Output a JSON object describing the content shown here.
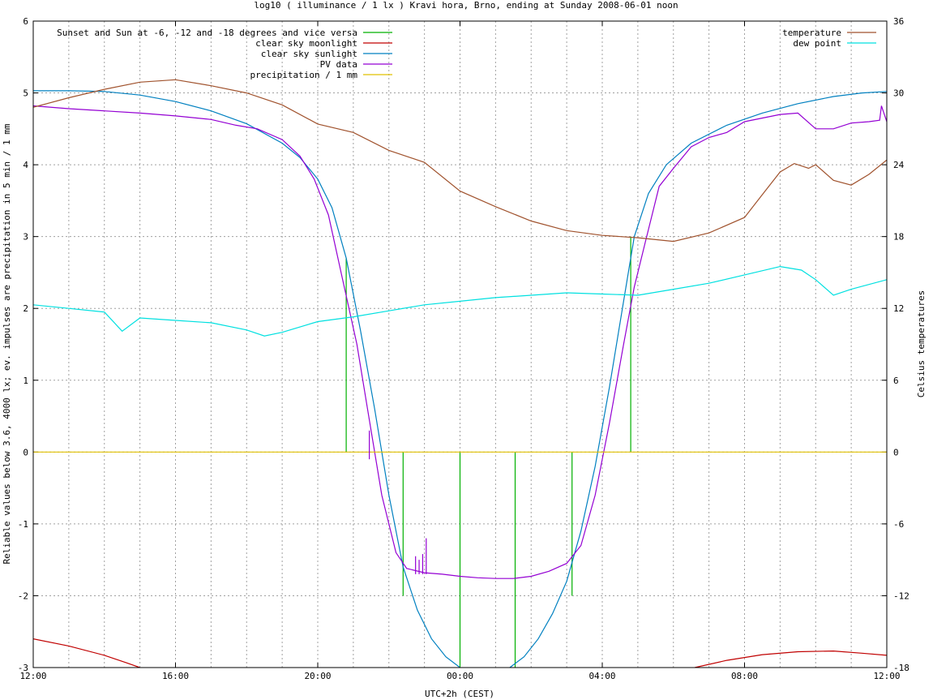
{
  "chart_data": {
    "type": "line",
    "title": "log10 ( illuminance / 1 lx ) Kravi hora, Brno, ending at Sunday 2008-06-01 noon",
    "xlabel": "UTC+2h (CEST)",
    "ylabel": "Reliable values below 3.6, 4000 lx; ev. impulses are precipitation in 5 min / 1 mm",
    "y2label": "Celsius temperatures",
    "xlim": [
      0,
      24
    ],
    "ylim": [
      -3,
      6
    ],
    "y2lim": [
      -18,
      36
    ],
    "grid": true,
    "legend_left_placement": "top-left",
    "legend_right_placement": "top-right",
    "x_ticks": [
      {
        "x": 0,
        "label": "12:00"
      },
      {
        "x": 4,
        "label": "16:00"
      },
      {
        "x": 8,
        "label": "20:00"
      },
      {
        "x": 12,
        "label": "00:00"
      },
      {
        "x": 16,
        "label": "04:00"
      },
      {
        "x": 20,
        "label": "08:00"
      },
      {
        "x": 24,
        "label": "12:00"
      }
    ],
    "y_ticks": [
      "-3",
      "-2",
      "-1",
      "0",
      "1",
      "2",
      "3",
      "4",
      "5",
      "6"
    ],
    "y2_ticks": [
      "-18",
      "-12",
      "-6",
      "0",
      "6",
      "12",
      "18",
      "24",
      "30",
      "36"
    ],
    "series": [
      {
        "name": "Sunset and Sun at -6, -12 and -18 degrees and vice versa",
        "color": "#00b000",
        "style": "impulses",
        "points": [
          [
            8.8,
            2.7
          ],
          [
            10.4,
            -2.0
          ],
          [
            12.0,
            -3.0
          ],
          [
            13.55,
            -3.0
          ],
          [
            15.15,
            -2.0
          ],
          [
            16.8,
            3.0
          ]
        ]
      },
      {
        "name": "clear sky moonlight",
        "color": "#c00000",
        "axis": "y",
        "points": [
          [
            0,
            -2.6
          ],
          [
            1,
            -2.7
          ],
          [
            2,
            -2.83
          ],
          [
            2.6,
            -2.93
          ],
          [
            3.0,
            -3.0
          ]
        ],
        "points2": [
          [
            18.6,
            -3.0
          ],
          [
            19.5,
            -2.9
          ],
          [
            20.5,
            -2.82
          ],
          [
            21.5,
            -2.78
          ],
          [
            22.5,
            -2.77
          ],
          [
            23.3,
            -2.8
          ],
          [
            24,
            -2.83
          ]
        ]
      },
      {
        "name": "clear sky sunlight",
        "color": "#0080c0",
        "axis": "y",
        "points": [
          [
            0,
            5.03
          ],
          [
            1,
            5.03
          ],
          [
            2,
            5.02
          ],
          [
            3,
            4.97
          ],
          [
            4,
            4.88
          ],
          [
            5,
            4.75
          ],
          [
            6,
            4.57
          ],
          [
            7,
            4.3
          ],
          [
            7.5,
            4.1
          ],
          [
            8.0,
            3.8
          ],
          [
            8.4,
            3.4
          ],
          [
            8.8,
            2.7
          ],
          [
            9.2,
            1.7
          ],
          [
            9.6,
            0.6
          ],
          [
            10.0,
            -0.6
          ],
          [
            10.4,
            -1.6
          ],
          [
            10.8,
            -2.2
          ],
          [
            11.2,
            -2.6
          ],
          [
            11.6,
            -2.85
          ],
          [
            12.0,
            -3.0
          ]
        ],
        "points2": [
          [
            13.4,
            -3.0
          ],
          [
            13.8,
            -2.85
          ],
          [
            14.2,
            -2.6
          ],
          [
            14.6,
            -2.25
          ],
          [
            15.0,
            -1.8
          ],
          [
            15.4,
            -1.1
          ],
          [
            15.8,
            -0.2
          ],
          [
            16.2,
            0.9
          ],
          [
            16.6,
            2.1
          ],
          [
            16.9,
            3.0
          ],
          [
            17.3,
            3.6
          ],
          [
            17.8,
            4.0
          ],
          [
            18.5,
            4.3
          ],
          [
            19.5,
            4.55
          ],
          [
            20.5,
            4.72
          ],
          [
            21.5,
            4.85
          ],
          [
            22.5,
            4.95
          ],
          [
            23.3,
            5.0
          ],
          [
            24,
            5.02
          ]
        ]
      },
      {
        "name": "PV data",
        "color": "#9400d3",
        "axis": "y",
        "points": [
          [
            0,
            4.82
          ],
          [
            1,
            4.78
          ],
          [
            2,
            4.75
          ],
          [
            3,
            4.72
          ],
          [
            4,
            4.68
          ],
          [
            5,
            4.63
          ],
          [
            5.7,
            4.55
          ],
          [
            6.3,
            4.5
          ],
          [
            7,
            4.35
          ],
          [
            7.5,
            4.12
          ],
          [
            7.9,
            3.8
          ],
          [
            8.3,
            3.3
          ],
          [
            8.7,
            2.4
          ],
          [
            9.1,
            1.5
          ],
          [
            9.4,
            0.6
          ],
          [
            9.8,
            -0.6
          ],
          [
            10.2,
            -1.4
          ],
          [
            10.5,
            -1.62
          ],
          [
            11,
            -1.68
          ],
          [
            11.5,
            -1.7
          ],
          [
            12,
            -1.73
          ],
          [
            12.5,
            -1.75
          ],
          [
            13,
            -1.76
          ],
          [
            13.5,
            -1.76
          ],
          [
            14,
            -1.73
          ],
          [
            14.5,
            -1.66
          ],
          [
            15.0,
            -1.55
          ],
          [
            15.4,
            -1.3
          ],
          [
            15.8,
            -0.6
          ],
          [
            16.2,
            0.4
          ],
          [
            16.6,
            1.5
          ],
          [
            16.9,
            2.3
          ],
          [
            17.2,
            2.9
          ],
          [
            17.6,
            3.7
          ],
          [
            18.0,
            3.95
          ],
          [
            18.5,
            4.25
          ],
          [
            19,
            4.38
          ],
          [
            19.5,
            4.45
          ],
          [
            20,
            4.6
          ],
          [
            21,
            4.7
          ],
          [
            21.5,
            4.72
          ],
          [
            22,
            4.5
          ],
          [
            22.5,
            4.5
          ],
          [
            23,
            4.58
          ],
          [
            23.5,
            4.6
          ],
          [
            23.8,
            4.62
          ],
          [
            23.85,
            4.82
          ],
          [
            24,
            4.6
          ]
        ]
      },
      {
        "name": "precipitation / 1 mm",
        "color": "#e0c000",
        "axis": "y",
        "points": [
          [
            0,
            0
          ],
          [
            24,
            0
          ]
        ]
      },
      {
        "name": "temperature",
        "color": "#a0522d",
        "axis": "y2",
        "points": [
          [
            0,
            28.8
          ],
          [
            1,
            29.6
          ],
          [
            2,
            30.3
          ],
          [
            3,
            30.9
          ],
          [
            4,
            31.1
          ],
          [
            5,
            30.6
          ],
          [
            6,
            30.0
          ],
          [
            7,
            29.0
          ],
          [
            8,
            27.4
          ],
          [
            9,
            26.7
          ],
          [
            10,
            25.2
          ],
          [
            11,
            24.2
          ],
          [
            12,
            21.8
          ],
          [
            13,
            20.5
          ],
          [
            14,
            19.3
          ],
          [
            15,
            18.5
          ],
          [
            16,
            18.1
          ],
          [
            17,
            17.9
          ],
          [
            18,
            17.6
          ],
          [
            19,
            18.3
          ],
          [
            20,
            19.6
          ],
          [
            20.5,
            21.5
          ],
          [
            21,
            23.4
          ],
          [
            21.4,
            24.1
          ],
          [
            21.8,
            23.7
          ],
          [
            22,
            24.0
          ],
          [
            22.5,
            22.7
          ],
          [
            23,
            22.3
          ],
          [
            23.5,
            23.2
          ],
          [
            24,
            24.4
          ]
        ]
      },
      {
        "name": "dew point",
        "color": "#00e0e0",
        "axis": "y2",
        "points": [
          [
            0,
            12.3
          ],
          [
            1,
            12.0
          ],
          [
            2,
            11.7
          ],
          [
            2.5,
            10.1
          ],
          [
            3,
            11.2
          ],
          [
            4,
            11.0
          ],
          [
            5,
            10.8
          ],
          [
            6,
            10.2
          ],
          [
            6.5,
            9.7
          ],
          [
            7,
            10.0
          ],
          [
            8,
            10.9
          ],
          [
            9,
            11.3
          ],
          [
            10,
            11.8
          ],
          [
            11,
            12.3
          ],
          [
            12,
            12.6
          ],
          [
            13,
            12.9
          ],
          [
            14,
            13.1
          ],
          [
            15,
            13.3
          ],
          [
            16,
            13.2
          ],
          [
            17,
            13.1
          ],
          [
            18,
            13.6
          ],
          [
            19,
            14.1
          ],
          [
            20,
            14.8
          ],
          [
            21,
            15.5
          ],
          [
            21.6,
            15.2
          ],
          [
            22,
            14.4
          ],
          [
            22.5,
            13.1
          ],
          [
            23,
            13.6
          ],
          [
            24,
            14.4
          ]
        ]
      }
    ],
    "spikes": [
      {
        "x": 9.45,
        "y_top": 0.3,
        "y_base": -0.1
      },
      {
        "x": 10.75,
        "y_top": -1.45,
        "y_base": -1.7
      },
      {
        "x": 10.85,
        "y_top": -1.5,
        "y_base": -1.7
      },
      {
        "x": 10.95,
        "y_top": -1.42,
        "y_base": -1.7
      },
      {
        "x": 11.05,
        "y_top": -1.2,
        "y_base": -1.7
      }
    ]
  }
}
